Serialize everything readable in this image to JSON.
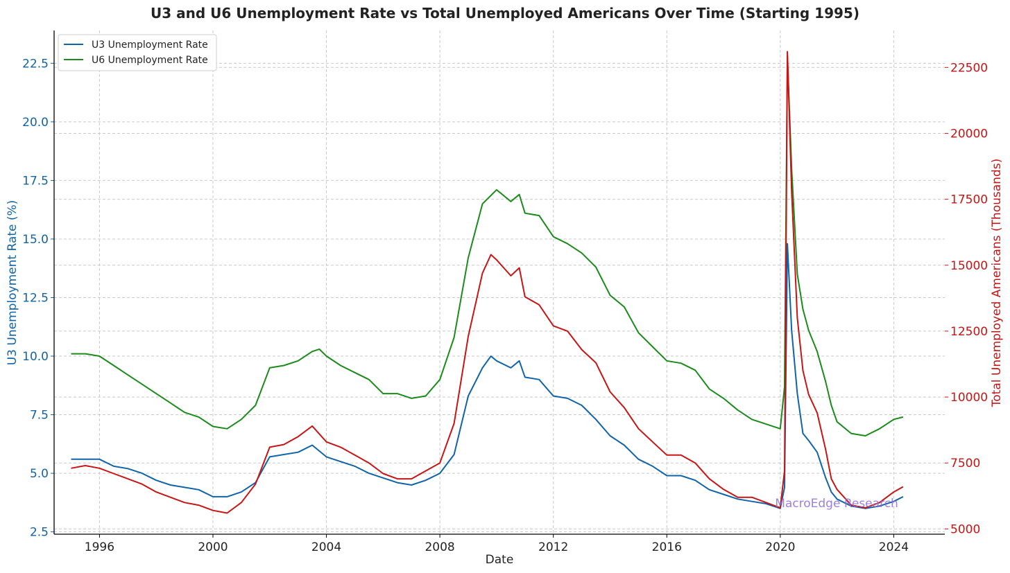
{
  "chart_data": {
    "type": "line",
    "title": "U3 and U6 Unemployment Rate vs Total Unemployed Americans Over Time (Starting 1995)",
    "xlabel": "Date",
    "ylabel_left": "U3 Unemployment Rate (%)",
    "ylabel_right": "Total Unemployed Americans (Thousands)",
    "xlim": [
      1994.4,
      2025.8
    ],
    "ylim_left": [
      2.4,
      23.9
    ],
    "ylim_right": [
      4800,
      23900
    ],
    "x_ticks": [
      1996,
      2000,
      2004,
      2008,
      2012,
      2016,
      2020,
      2024
    ],
    "y_ticks_left": [
      2.5,
      5.0,
      7.5,
      10.0,
      12.5,
      15.0,
      17.5,
      20.0,
      22.5
    ],
    "y_ticks_left_labels": [
      "2.5",
      "5.0",
      "7.5",
      "10.0",
      "12.5",
      "15.0",
      "17.5",
      "20.0",
      "22.5"
    ],
    "y_ticks_right": [
      5000,
      7500,
      10000,
      12500,
      15000,
      17500,
      20000,
      22500
    ],
    "y_ticks_right_labels": [
      "5000",
      "7500",
      "10000",
      "12500",
      "15000",
      "17500",
      "20000",
      "22500"
    ],
    "grid": true,
    "legend_position": "top-left",
    "annotation": "MacroEdge Research",
    "series": [
      {
        "name": "U3 Unemployment Rate",
        "axis": "left",
        "color": "#0f63a8",
        "x": [
          1995.0,
          1995.5,
          1996.0,
          1996.5,
          1997.0,
          1997.5,
          1998.0,
          1998.5,
          1999.0,
          1999.5,
          2000.0,
          2000.5,
          2001.0,
          2001.5,
          2002.0,
          2002.5,
          2003.0,
          2003.5,
          2004.0,
          2004.5,
          2005.0,
          2005.5,
          2006.0,
          2006.5,
          2007.0,
          2007.5,
          2008.0,
          2008.5,
          2009.0,
          2009.5,
          2009.8,
          2010.0,
          2010.5,
          2010.8,
          2011.0,
          2011.5,
          2012.0,
          2012.5,
          2013.0,
          2013.5,
          2014.0,
          2014.5,
          2015.0,
          2015.5,
          2016.0,
          2016.5,
          2017.0,
          2017.5,
          2018.0,
          2018.5,
          2019.0,
          2019.5,
          2020.0,
          2020.15,
          2020.25,
          2020.4,
          2020.6,
          2020.8,
          2021.0,
          2021.3,
          2021.6,
          2021.8,
          2022.0,
          2022.5,
          2023.0,
          2023.5,
          2024.0,
          2024.33
        ],
        "values": [
          5.6,
          5.6,
          5.6,
          5.3,
          5.2,
          5.0,
          4.7,
          4.5,
          4.4,
          4.3,
          4.0,
          4.0,
          4.2,
          4.6,
          5.7,
          5.8,
          5.9,
          6.2,
          5.7,
          5.5,
          5.3,
          5.0,
          4.8,
          4.6,
          4.5,
          4.7,
          5.0,
          5.8,
          8.3,
          9.5,
          10.0,
          9.8,
          9.5,
          9.8,
          9.1,
          9.0,
          8.3,
          8.2,
          7.9,
          7.3,
          6.6,
          6.2,
          5.6,
          5.3,
          4.9,
          4.9,
          4.7,
          4.3,
          4.1,
          3.9,
          3.8,
          3.7,
          3.5,
          4.4,
          14.8,
          11.1,
          8.4,
          6.7,
          6.4,
          5.9,
          4.8,
          4.2,
          3.9,
          3.6,
          3.5,
          3.6,
          3.8,
          4.0
        ]
      },
      {
        "name": "U6 Unemployment Rate",
        "axis": "left",
        "color": "#1a8a1a",
        "x": [
          1995.0,
          1995.5,
          1996.0,
          1996.5,
          1997.0,
          1997.5,
          1998.0,
          1998.5,
          1999.0,
          1999.5,
          2000.0,
          2000.5,
          2001.0,
          2001.5,
          2002.0,
          2002.5,
          2003.0,
          2003.5,
          2003.75,
          2004.0,
          2004.5,
          2005.0,
          2005.5,
          2006.0,
          2006.5,
          2007.0,
          2007.5,
          2008.0,
          2008.5,
          2009.0,
          2009.5,
          2010.0,
          2010.5,
          2010.8,
          2011.0,
          2011.5,
          2012.0,
          2012.5,
          2013.0,
          2013.5,
          2014.0,
          2014.5,
          2015.0,
          2015.5,
          2016.0,
          2016.5,
          2017.0,
          2017.5,
          2018.0,
          2018.5,
          2019.0,
          2019.5,
          2020.0,
          2020.15,
          2020.25,
          2020.4,
          2020.6,
          2020.8,
          2021.0,
          2021.3,
          2021.6,
          2021.8,
          2022.0,
          2022.5,
          2023.0,
          2023.5,
          2024.0,
          2024.33
        ],
        "values": [
          10.1,
          10.1,
          10.0,
          9.6,
          9.2,
          8.8,
          8.4,
          8.0,
          7.6,
          7.4,
          7.0,
          6.9,
          7.3,
          7.9,
          9.5,
          9.6,
          9.8,
          10.2,
          10.3,
          10.0,
          9.6,
          9.3,
          9.0,
          8.4,
          8.4,
          8.2,
          8.3,
          9.0,
          10.8,
          14.2,
          16.5,
          17.1,
          16.6,
          16.9,
          16.1,
          16.0,
          15.1,
          14.8,
          14.4,
          13.8,
          12.6,
          12.1,
          11.0,
          10.4,
          9.8,
          9.7,
          9.4,
          8.6,
          8.2,
          7.7,
          7.3,
          7.1,
          6.9,
          8.7,
          22.8,
          18.0,
          13.5,
          12.0,
          11.1,
          10.2,
          8.9,
          7.9,
          7.2,
          6.7,
          6.6,
          6.9,
          7.3,
          7.4
        ]
      },
      {
        "name": "Total Unemployed Americans",
        "axis": "right",
        "color": "#c81414",
        "x": [
          1995.0,
          1995.5,
          1996.0,
          1996.5,
          1997.0,
          1997.5,
          1998.0,
          1998.5,
          1999.0,
          1999.5,
          2000.0,
          2000.5,
          2001.0,
          2001.5,
          2002.0,
          2002.5,
          2003.0,
          2003.5,
          2004.0,
          2004.5,
          2005.0,
          2005.5,
          2006.0,
          2006.5,
          2007.0,
          2007.5,
          2008.0,
          2008.5,
          2009.0,
          2009.5,
          2009.8,
          2010.0,
          2010.5,
          2010.8,
          2011.0,
          2011.5,
          2012.0,
          2012.5,
          2013.0,
          2013.5,
          2014.0,
          2014.5,
          2015.0,
          2015.5,
          2016.0,
          2016.5,
          2017.0,
          2017.5,
          2018.0,
          2018.5,
          2019.0,
          2019.5,
          2020.0,
          2020.15,
          2020.25,
          2020.4,
          2020.6,
          2020.8,
          2021.0,
          2021.3,
          2021.6,
          2021.8,
          2022.0,
          2022.5,
          2023.0,
          2023.5,
          2024.0,
          2024.33
        ],
        "values": [
          7300,
          7400,
          7300,
          7100,
          6900,
          6700,
          6400,
          6200,
          6000,
          5900,
          5700,
          5600,
          6000,
          6700,
          8100,
          8200,
          8500,
          8900,
          8300,
          8100,
          7800,
          7500,
          7100,
          6900,
          6900,
          7200,
          7500,
          9000,
          12300,
          14700,
          15400,
          15200,
          14600,
          14900,
          13800,
          13500,
          12700,
          12500,
          11800,
          11300,
          10200,
          9600,
          8800,
          8300,
          7800,
          7800,
          7500,
          6900,
          6500,
          6200,
          6200,
          6000,
          5800,
          7200,
          23100,
          17800,
          13000,
          11000,
          10100,
          9400,
          8000,
          6900,
          6500,
          5900,
          5800,
          6000,
          6400,
          6600
        ]
      }
    ]
  }
}
